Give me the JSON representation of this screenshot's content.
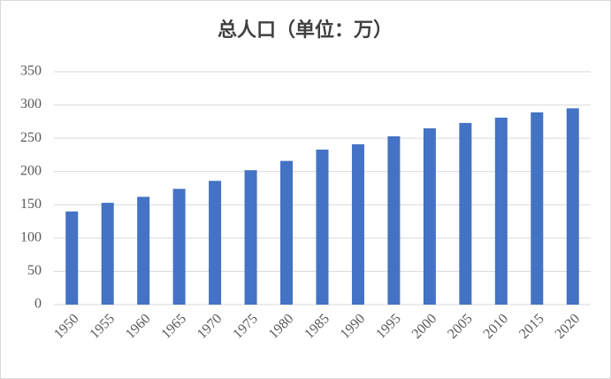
{
  "chart_data": {
    "type": "bar",
    "title": "总人口（单位：万）",
    "categories": [
      "1950",
      "1955",
      "1960",
      "1965",
      "1970",
      "1975",
      "1980",
      "1985",
      "1990",
      "1995",
      "2000",
      "2005",
      "2010",
      "2015",
      "2020"
    ],
    "values": [
      140,
      153,
      162,
      174,
      186,
      202,
      216,
      233,
      241,
      253,
      265,
      273,
      281,
      289,
      295
    ],
    "color": "#4472c4",
    "ylim": [
      0,
      350
    ],
    "yticks": [
      0,
      50,
      100,
      150,
      200,
      250,
      300,
      350
    ],
    "grid": true
  }
}
